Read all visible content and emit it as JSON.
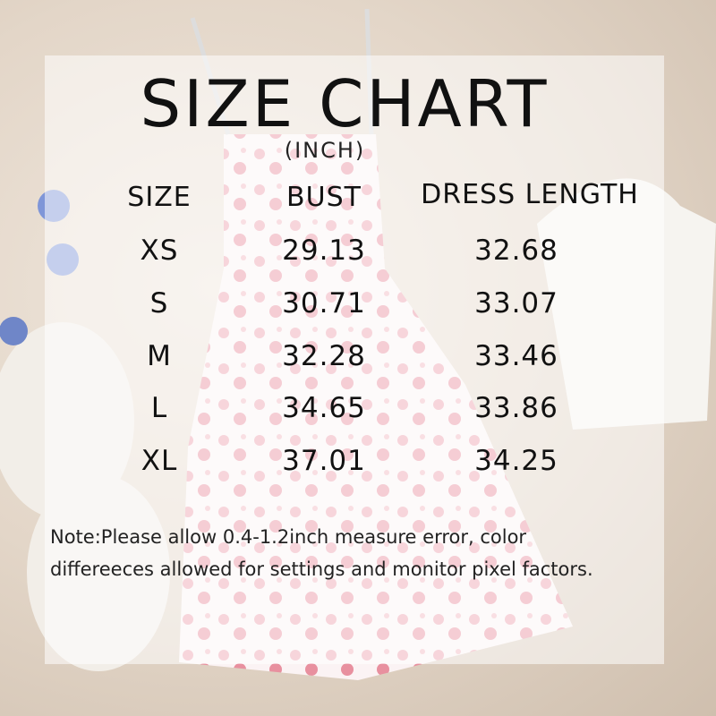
{
  "title": "SIZE CHART",
  "unit": "(INCH)",
  "columns": [
    "SIZE",
    "BUST",
    "DRESS LENGTH"
  ],
  "rows": [
    {
      "size": "XS",
      "bust": "29.13",
      "length": "32.68"
    },
    {
      "size": "S",
      "bust": "30.71",
      "length": "33.07"
    },
    {
      "size": "M",
      "bust": "32.28",
      "length": "33.46"
    },
    {
      "size": "L",
      "bust": "34.65",
      "length": "33.86"
    },
    {
      "size": "XL",
      "bust": "37.01",
      "length": "34.25"
    }
  ],
  "note": [
    "Note:Please allow 0.4-1.2inch measure error, color",
    "differeeces allowed for settings and monitor pixel factors."
  ],
  "colors": {
    "background": "#e3d6c8",
    "dress_print": "#e8909f",
    "panel": "#ffffff"
  }
}
